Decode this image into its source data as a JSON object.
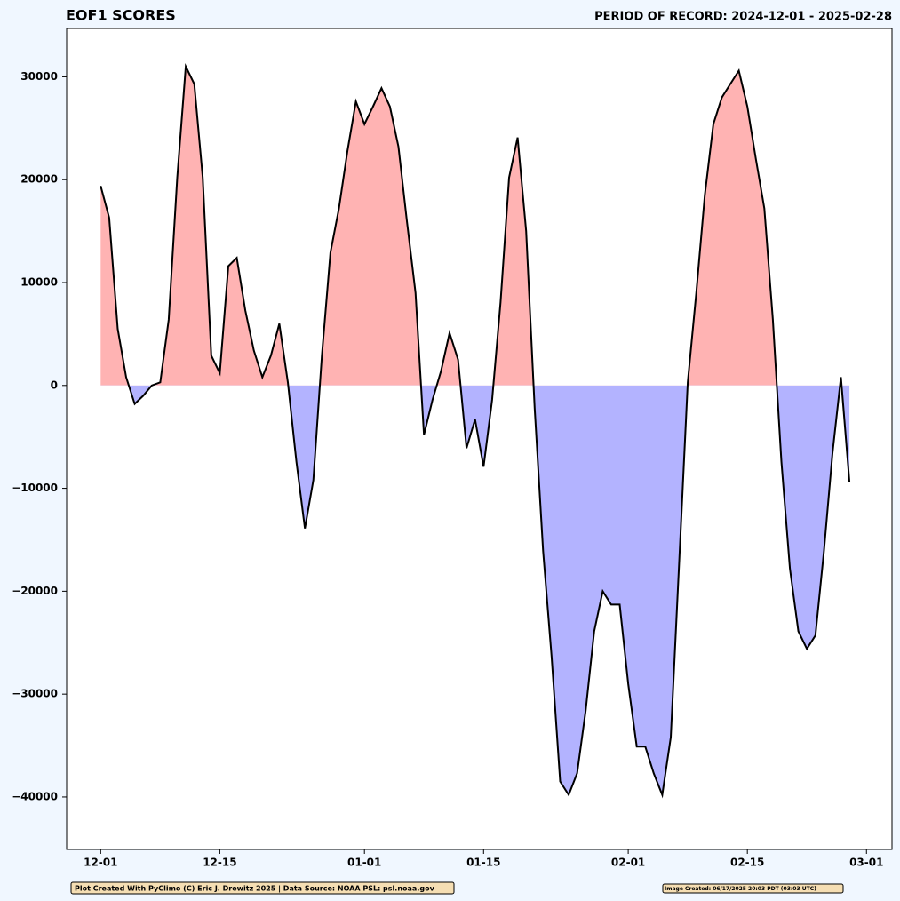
{
  "chart_data": {
    "type": "line",
    "title": "EOF1 SCORES",
    "subtitle": "PERIOD OF RECORD: 2024-12-01 - 2025-02-28",
    "x": [
      "12-01",
      "12-02",
      "12-03",
      "12-04",
      "12-05",
      "12-06",
      "12-07",
      "12-08",
      "12-09",
      "12-10",
      "12-11",
      "12-12",
      "12-13",
      "12-14",
      "12-15",
      "12-16",
      "12-17",
      "12-18",
      "12-19",
      "12-20",
      "12-21",
      "12-22",
      "12-23",
      "12-24",
      "12-25",
      "12-26",
      "12-27",
      "12-28",
      "12-29",
      "12-30",
      "12-31",
      "01-01",
      "01-02",
      "01-03",
      "01-04",
      "01-05",
      "01-06",
      "01-07",
      "01-08",
      "01-09",
      "01-10",
      "01-11",
      "01-12",
      "01-13",
      "01-14",
      "01-15",
      "01-16",
      "01-17",
      "01-18",
      "01-19",
      "01-20",
      "01-21",
      "01-22",
      "01-23",
      "01-24",
      "01-25",
      "01-26",
      "01-27",
      "01-28",
      "01-29",
      "01-30",
      "01-31",
      "02-01",
      "02-02",
      "02-03",
      "02-04",
      "02-05",
      "02-06",
      "02-07",
      "02-08",
      "02-09",
      "02-10",
      "02-11",
      "02-12",
      "02-13",
      "02-14",
      "02-15",
      "02-16",
      "02-17",
      "02-18",
      "02-19",
      "02-20",
      "02-21",
      "02-22",
      "02-23",
      "02-24",
      "02-25",
      "02-26",
      "02-27"
    ],
    "series": [
      {
        "name": "EOF1",
        "color": "#000000",
        "values": [
          19400,
          16300,
          5500,
          800,
          -1800,
          -1000,
          0,
          300,
          6400,
          20200,
          31000,
          29300,
          20200,
          2900,
          1200,
          11600,
          12400,
          7300,
          3400,
          800,
          2900,
          6000,
          300,
          -7400,
          -13900,
          -9200,
          2900,
          12900,
          17200,
          22800,
          27600,
          25400,
          27100,
          28900,
          27100,
          23200,
          15900,
          9000,
          -4800,
          -1400,
          1400,
          5100,
          2500,
          -6100,
          -3300,
          -7900,
          -1400,
          8100,
          20200,
          24100,
          15000,
          -2200,
          -16100,
          -26400,
          -38500,
          -39800,
          -37700,
          -31600,
          -23900,
          -20000,
          -21300,
          -21300,
          -29000,
          -35100,
          -35100,
          -37700,
          -39800,
          -34200,
          -16900,
          300,
          9000,
          18500,
          25400,
          28000,
          29300,
          30600,
          27100,
          22000,
          17200,
          6400,
          -7400,
          -17800,
          -23900,
          -25600,
          -24300,
          -16100,
          -6600,
          800,
          -9400
        ]
      }
    ],
    "fill_above_color": "#ffb3b3",
    "fill_below_color": "#b3b3ff",
    "xlim": [
      "11-27",
      "03-04"
    ],
    "xticks": [
      "12-01",
      "12-15",
      "01-01",
      "01-15",
      "02-01",
      "02-15",
      "03-01"
    ],
    "ylim": [
      -45100,
      34700
    ],
    "yticks": [
      30000,
      20000,
      10000,
      0,
      {
        "value": -10000,
        "label": "−10000"
      },
      {
        "value": -20000,
        "label": "−20000"
      },
      {
        "value": -30000,
        "label": "−30000"
      },
      {
        "value": -40000,
        "label": "−40000"
      }
    ],
    "grid": false,
    "annotations": [
      "Plot Created With PyClimo (C) Eric J. Drewitz 2025 | Data Source: NOAA PSL: psl.noaa.gov",
      "Image Created: 06/17/2025 20:03 PDT (03:03 UTC)"
    ]
  }
}
